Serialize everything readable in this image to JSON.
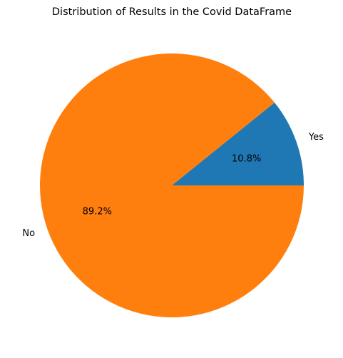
{
  "chart_data": {
    "type": "pie",
    "title": "Distribution of Results in the Covid DataFrame",
    "slices": [
      {
        "label": "Yes",
        "value": 10.8,
        "pct_label": "10.8%",
        "color": "#1f77b4"
      },
      {
        "label": "No",
        "value": 89.2,
        "pct_label": "89.2%",
        "color": "#ff7f0e"
      }
    ],
    "start_angle_deg": 0,
    "direction": "counterclockwise",
    "legend": "none"
  }
}
